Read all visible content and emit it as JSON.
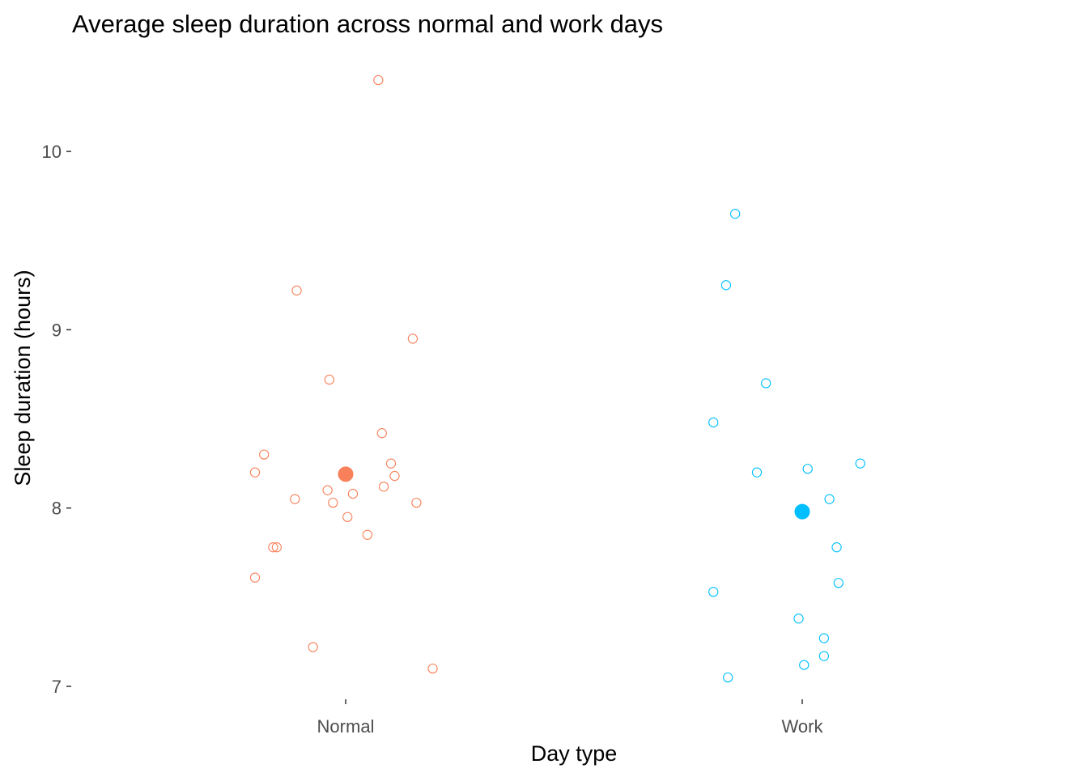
{
  "chart_data": {
    "type": "scatter",
    "title": "Average sleep duration across normal and work days",
    "xlabel": "Day type",
    "ylabel": "Sleep duration (hours)",
    "categories": [
      "Normal",
      "Work"
    ],
    "y_ticks": [
      "7",
      "8",
      "9",
      "10"
    ],
    "ylim": [
      6.9,
      10.45
    ],
    "grid": false,
    "legend": "none",
    "series": [
      {
        "category": "Normal",
        "color": "#F8805A",
        "mean": 8.19,
        "points": [
          {
            "x": 0.18,
            "y": 10.4
          },
          {
            "x": -0.27,
            "y": 9.22
          },
          {
            "x": 0.37,
            "y": 8.95
          },
          {
            "x": -0.09,
            "y": 8.72
          },
          {
            "x": 0.2,
            "y": 8.42
          },
          {
            "x": -0.45,
            "y": 8.3
          },
          {
            "x": 0.25,
            "y": 8.25
          },
          {
            "x": -0.5,
            "y": 8.2
          },
          {
            "x": 0.27,
            "y": 8.18
          },
          {
            "x": 0.21,
            "y": 8.12
          },
          {
            "x": -0.1,
            "y": 8.1
          },
          {
            "x": 0.04,
            "y": 8.08
          },
          {
            "x": -0.28,
            "y": 8.05
          },
          {
            "x": 0.39,
            "y": 8.03
          },
          {
            "x": -0.07,
            "y": 8.03
          },
          {
            "x": 0.01,
            "y": 7.95
          },
          {
            "x": 0.12,
            "y": 7.85
          },
          {
            "x": -0.4,
            "y": 7.78
          },
          {
            "x": -0.38,
            "y": 7.78
          },
          {
            "x": -0.5,
            "y": 7.61
          },
          {
            "x": -0.18,
            "y": 7.22
          },
          {
            "x": 0.48,
            "y": 7.1
          }
        ]
      },
      {
        "category": "Work",
        "color": "#00BFFF",
        "mean": 7.98,
        "points": [
          {
            "x": -0.37,
            "y": 9.65
          },
          {
            "x": -0.42,
            "y": 9.25
          },
          {
            "x": -0.2,
            "y": 8.7
          },
          {
            "x": -0.49,
            "y": 8.48
          },
          {
            "x": 0.32,
            "y": 8.25
          },
          {
            "x": 0.03,
            "y": 8.22
          },
          {
            "x": -0.25,
            "y": 8.2
          },
          {
            "x": 0.15,
            "y": 8.05
          },
          {
            "x": 0.19,
            "y": 7.78
          },
          {
            "x": 0.2,
            "y": 7.58
          },
          {
            "x": -0.49,
            "y": 7.53
          },
          {
            "x": -0.02,
            "y": 7.38
          },
          {
            "x": 0.12,
            "y": 7.27
          },
          {
            "x": 0.12,
            "y": 7.17
          },
          {
            "x": 0.01,
            "y": 7.12
          },
          {
            "x": -0.41,
            "y": 7.05
          }
        ]
      }
    ]
  }
}
